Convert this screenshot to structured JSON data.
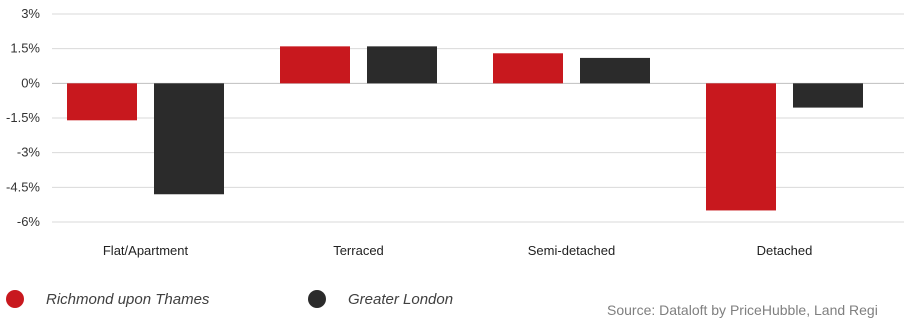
{
  "chart_data": {
    "type": "bar",
    "categories": [
      "Flat/Apartment",
      "Terraced",
      "Semi-detached",
      "Detached"
    ],
    "series": [
      {
        "name": "Richmond upon Thames",
        "color": "#c8181e",
        "values": [
          -1.6,
          1.6,
          1.3,
          -5.5
        ]
      },
      {
        "name": "Greater London",
        "color": "#2b2b2b",
        "values": [
          -4.8,
          1.6,
          1.1,
          -1.05
        ]
      }
    ],
    "y_ticks": [
      "3%",
      "1.5%",
      "0%",
      "-1.5%",
      "-3%",
      "-4.5%",
      "-6%"
    ],
    "y_tick_values": [
      3,
      1.5,
      0,
      -1.5,
      -3,
      -4.5,
      -6
    ],
    "ylim": [
      -6,
      3
    ],
    "grid": true,
    "legend_position": "bottom-left",
    "title": "",
    "xlabel": "",
    "ylabel": ""
  },
  "source_text": "Source: Dataloft by PriceHubble, Land Regi"
}
